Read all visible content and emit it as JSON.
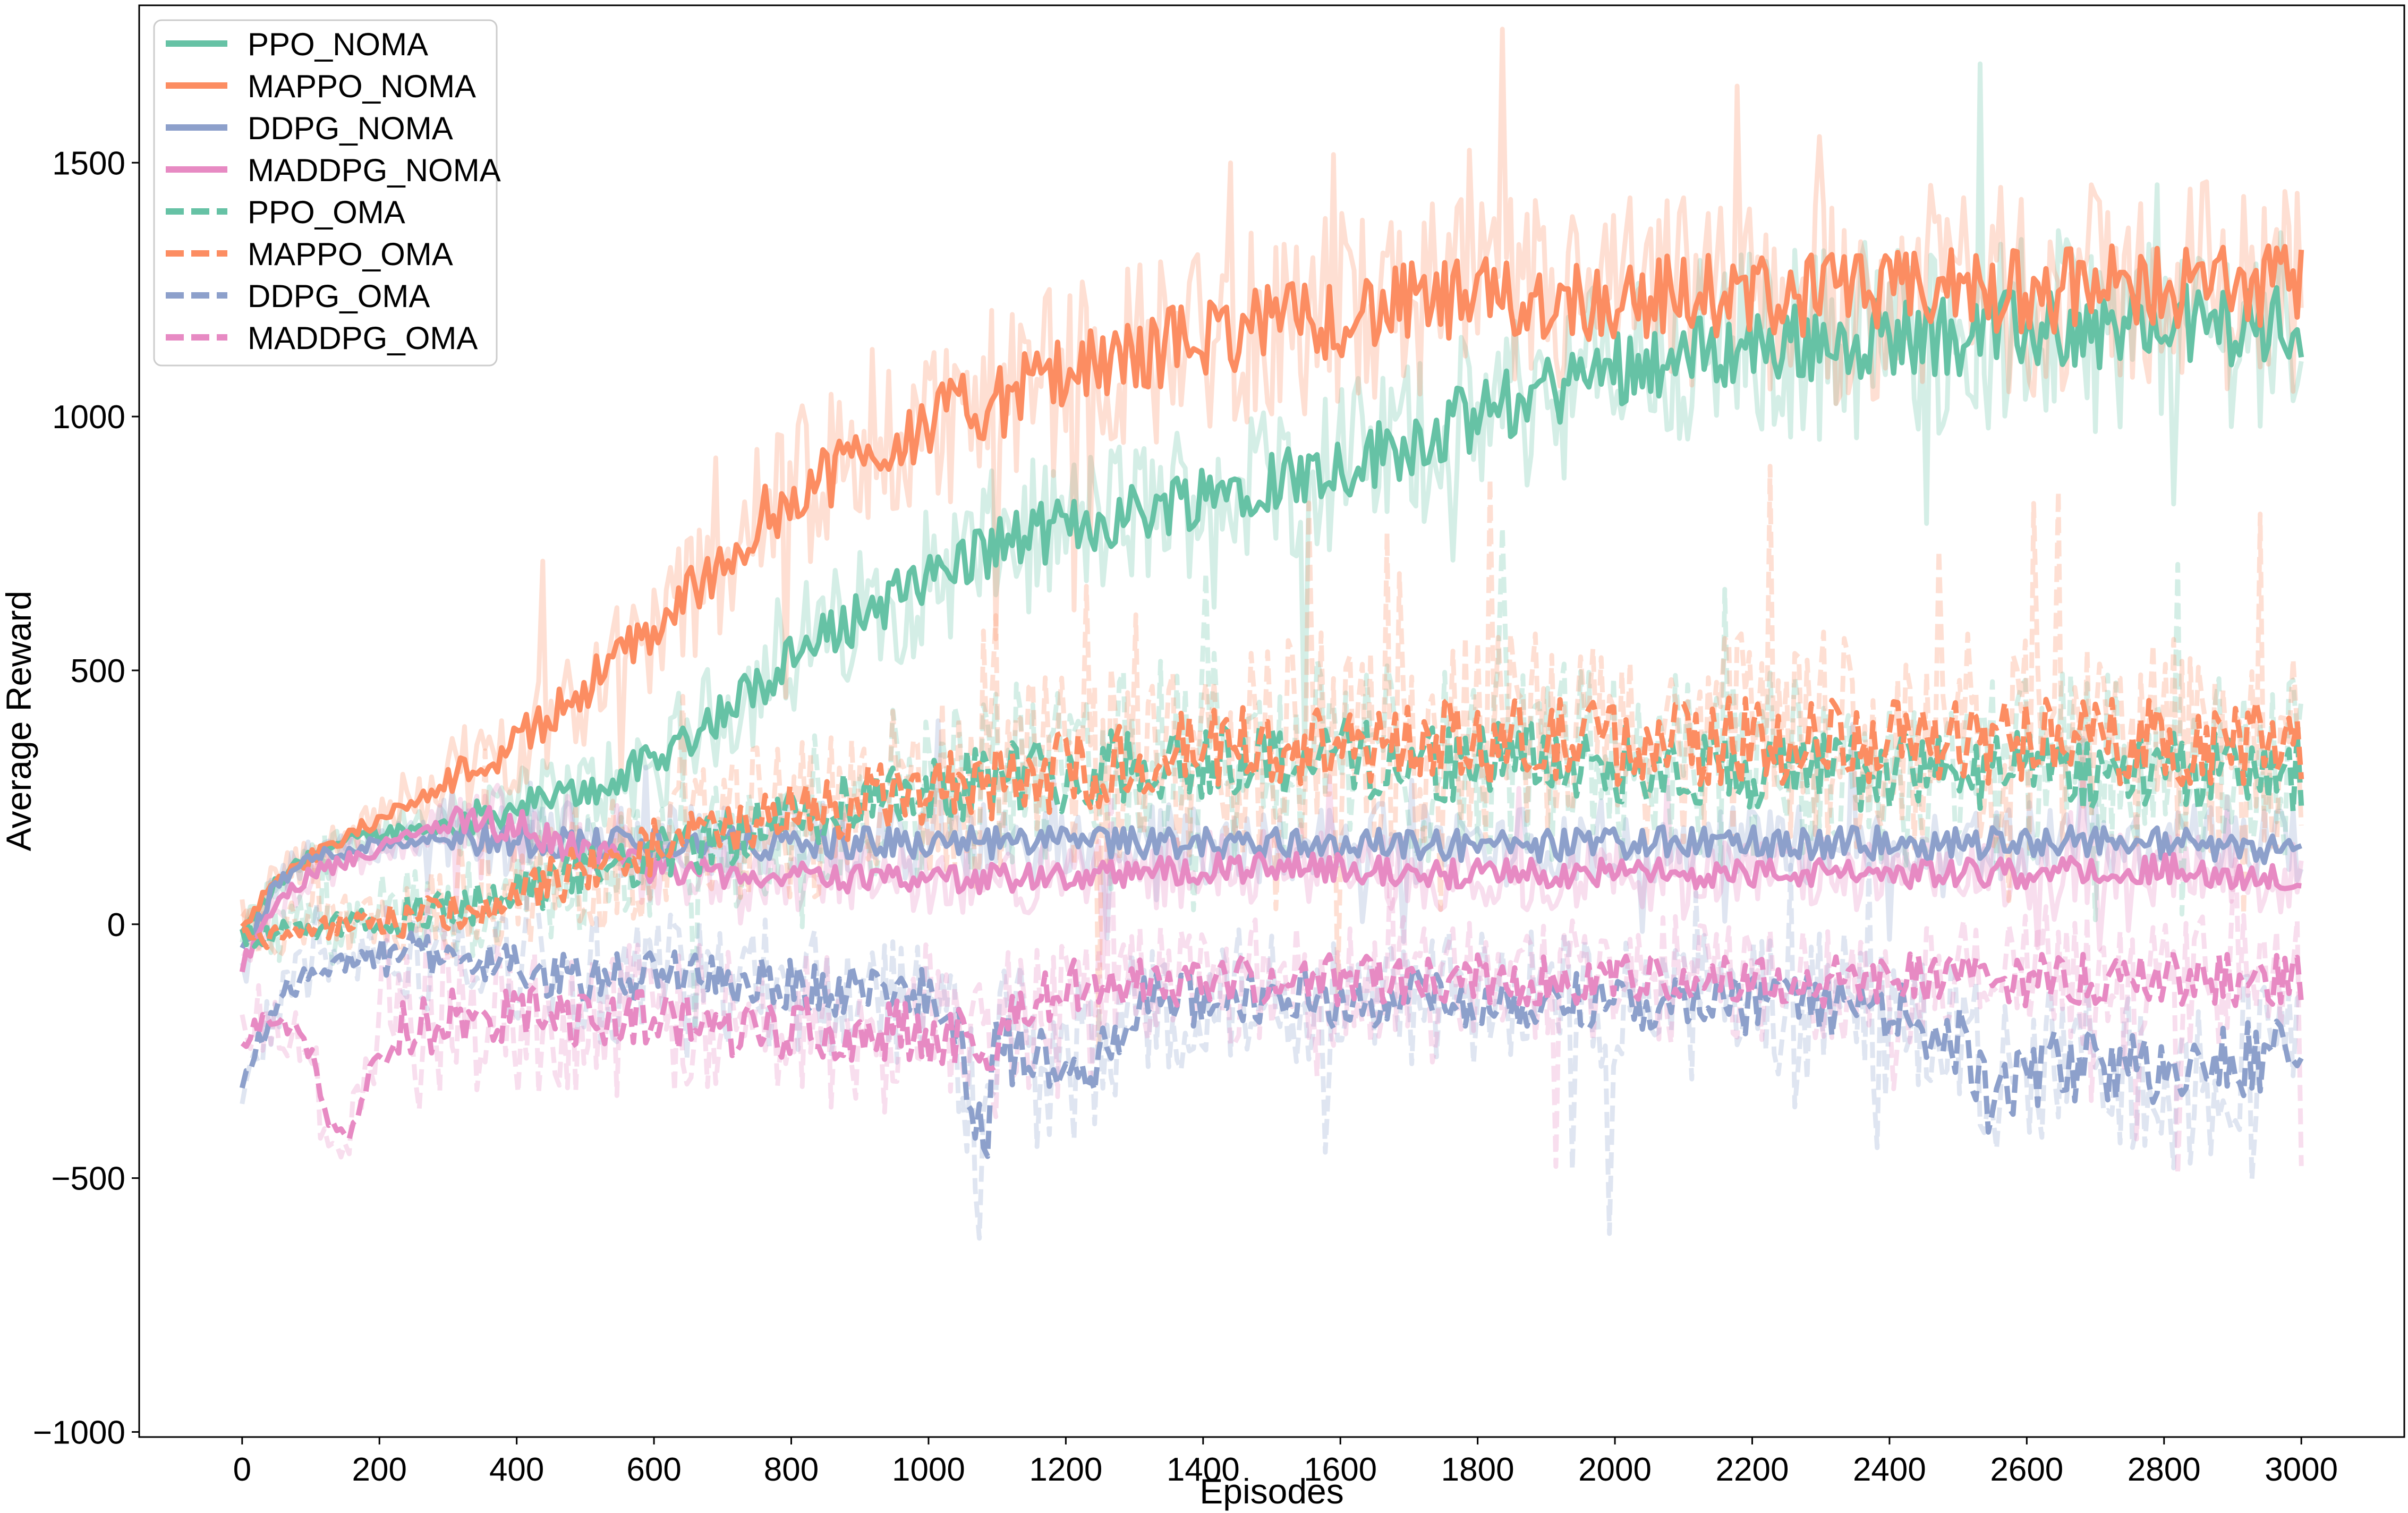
{
  "chart_data": {
    "type": "line",
    "xlabel": "Episodes",
    "ylabel": "Average Reward",
    "xlim": [
      -150,
      3150
    ],
    "ylim": [
      -1010,
      1810
    ],
    "xticks": [
      0,
      200,
      400,
      600,
      800,
      1000,
      1200,
      1400,
      1600,
      1800,
      2000,
      2200,
      2400,
      2600,
      2800,
      3000
    ],
    "yticks": [
      -1000,
      -500,
      0,
      500,
      1000,
      1500
    ],
    "xtick_labels": [
      "0",
      "200",
      "400",
      "600",
      "800",
      "1000",
      "1200",
      "1400",
      "1600",
      "1800",
      "2000",
      "2200",
      "2400",
      "2600",
      "2800",
      "3000"
    ],
    "ytick_labels": [
      "−1000",
      "−500",
      "0",
      "500",
      "1000",
      "1500"
    ],
    "grid": false,
    "legend_position": "upper-left",
    "series": [
      {
        "name": "PPO_NOMA",
        "color": "#66c2a5",
        "style": "solid",
        "x": [
          0,
          50,
          100,
          200,
          300,
          400,
          500,
          600,
          700,
          800,
          900,
          1000,
          1100,
          1200,
          1300,
          1400,
          1500,
          1600,
          1700,
          1800,
          1900,
          2000,
          2100,
          2200,
          2300,
          2400,
          2500,
          2600,
          2700,
          2800,
          2900,
          3000
        ],
        "y": [
          -20,
          80,
          140,
          180,
          195,
          230,
          260,
          320,
          420,
          520,
          610,
          680,
          750,
          780,
          810,
          850,
          880,
          900,
          950,
          1000,
          1050,
          1100,
          1120,
          1140,
          1150,
          1160,
          1160,
          1170,
          1170,
          1180,
          1180,
          1180
        ]
      },
      {
        "name": "MAPPO_NOMA",
        "color": "#fc8d62",
        "style": "solid",
        "x": [
          0,
          50,
          100,
          200,
          300,
          400,
          500,
          600,
          700,
          800,
          900,
          1000,
          1100,
          1200,
          1300,
          1400,
          1500,
          1600,
          1700,
          1800,
          1900,
          2000,
          2100,
          2200,
          2300,
          2400,
          2500,
          2600,
          2700,
          2800,
          2900,
          3000
        ],
        "y": [
          -20,
          100,
          130,
          210,
          280,
          360,
          470,
          580,
          720,
          850,
          920,
          990,
          1030,
          1080,
          1120,
          1160,
          1180,
          1200,
          1220,
          1230,
          1230,
          1230,
          1240,
          1240,
          1240,
          1240,
          1250,
          1250,
          1250,
          1260,
          1260,
          1260
        ]
      },
      {
        "name": "DDPG_NOMA",
        "color": "#8da0cb",
        "style": "solid",
        "x": [
          0,
          50,
          100,
          200,
          300,
          400,
          500,
          600,
          700,
          800,
          900,
          1000,
          1100,
          1200,
          1300,
          1400,
          1500,
          1600,
          1700,
          1800,
          1900,
          2000,
          2100,
          2200,
          2300,
          2400,
          2500,
          2600,
          2700,
          2800,
          2900,
          3000
        ],
        "y": [
          -60,
          80,
          130,
          160,
          170,
          165,
          160,
          160,
          160,
          160,
          160,
          160,
          160,
          160,
          160,
          160,
          160,
          160,
          160,
          155,
          155,
          160,
          160,
          160,
          160,
          160,
          160,
          165,
          165,
          160,
          155,
          150
        ]
      },
      {
        "name": "MADDPG_NOMA",
        "color": "#e78ac3",
        "style": "solid",
        "x": [
          0,
          50,
          100,
          200,
          300,
          400,
          500,
          600,
          700,
          800,
          900,
          1000,
          1100,
          1200,
          1300,
          1400,
          1500,
          1600,
          1700,
          1800,
          1900,
          2000,
          2100,
          2200,
          2300,
          2400,
          2500,
          2600,
          2700,
          2800,
          2900,
          3000
        ],
        "y": [
          -80,
          40,
          100,
          150,
          200,
          195,
          140,
          110,
          100,
          95,
          90,
          90,
          90,
          95,
          100,
          110,
          110,
          110,
          100,
          100,
          100,
          100,
          100,
          100,
          100,
          100,
          100,
          100,
          110,
          110,
          100,
          90
        ]
      },
      {
        "name": "PPO_OMA",
        "color": "#66c2a5",
        "style": "dashed",
        "x": [
          0,
          50,
          100,
          200,
          300,
          400,
          500,
          600,
          700,
          800,
          900,
          1000,
          1100,
          1200,
          1300,
          1400,
          1500,
          1600,
          1700,
          1800,
          1900,
          2000,
          2100,
          2200,
          2300,
          2400,
          2500,
          2600,
          2700,
          2800,
          2900,
          3000
        ],
        "y": [
          -30,
          -20,
          -10,
          10,
          30,
          60,
          100,
          130,
          170,
          210,
          250,
          270,
          290,
          300,
          320,
          330,
          330,
          330,
          320,
          320,
          320,
          320,
          310,
          300,
          300,
          300,
          300,
          300,
          300,
          300,
          300,
          300
        ]
      },
      {
        "name": "MAPPO_OMA",
        "color": "#fc8d62",
        "style": "dashed",
        "x": [
          0,
          50,
          100,
          200,
          300,
          400,
          500,
          600,
          700,
          800,
          900,
          1000,
          1100,
          1200,
          1300,
          1400,
          1500,
          1600,
          1700,
          1800,
          1900,
          2000,
          2100,
          2200,
          2300,
          2400,
          2500,
          2600,
          2700,
          2800,
          2900,
          3000
        ],
        "y": [
          -30,
          -20,
          -10,
          5,
          20,
          60,
          110,
          150,
          180,
          210,
          240,
          260,
          280,
          300,
          320,
          340,
          350,
          360,
          360,
          360,
          360,
          360,
          360,
          360,
          360,
          360,
          360,
          360,
          360,
          360,
          360,
          360
        ]
      },
      {
        "name": "DDPG_OMA",
        "color": "#8da0cb",
        "style": "dashed",
        "x": [
          0,
          50,
          100,
          200,
          300,
          400,
          500,
          600,
          700,
          800,
          900,
          1000,
          1050,
          1080,
          1100,
          1200,
          1250,
          1300,
          1400,
          1500,
          1600,
          1700,
          1800,
          1900,
          2000,
          2100,
          2200,
          2300,
          2400,
          2500,
          2550,
          2600,
          2700,
          2800,
          2900,
          3000
        ],
        "y": [
          -320,
          -150,
          -90,
          -60,
          -60,
          -80,
          -110,
          -100,
          -110,
          -120,
          -130,
          -140,
          -250,
          -460,
          -240,
          -290,
          -290,
          -150,
          -150,
          -140,
          -150,
          -140,
          -150,
          -150,
          -150,
          -160,
          -160,
          -160,
          -170,
          -230,
          -360,
          -290,
          -270,
          -300,
          -270,
          -240
        ]
      },
      {
        "name": "MADDPG_OMA",
        "color": "#e78ac3",
        "style": "dashed",
        "x": [
          0,
          50,
          100,
          120,
          150,
          170,
          200,
          300,
          400,
          500,
          600,
          700,
          800,
          900,
          1000,
          1100,
          1200,
          1300,
          1400,
          1500,
          1600,
          1700,
          1800,
          1900,
          2000,
          2100,
          2200,
          2300,
          2400,
          2500,
          2600,
          2700,
          2800,
          2900,
          3000
        ],
        "y": [
          -230,
          -180,
          -250,
          -380,
          -430,
          -360,
          -230,
          -190,
          -180,
          -180,
          -190,
          -200,
          -200,
          -210,
          -210,
          -220,
          -120,
          -110,
          -110,
          -110,
          -110,
          -110,
          -110,
          -110,
          -110,
          -110,
          -110,
          -110,
          -110,
          -110,
          -110,
          -110,
          -110,
          -110,
          -110
        ]
      }
    ]
  }
}
